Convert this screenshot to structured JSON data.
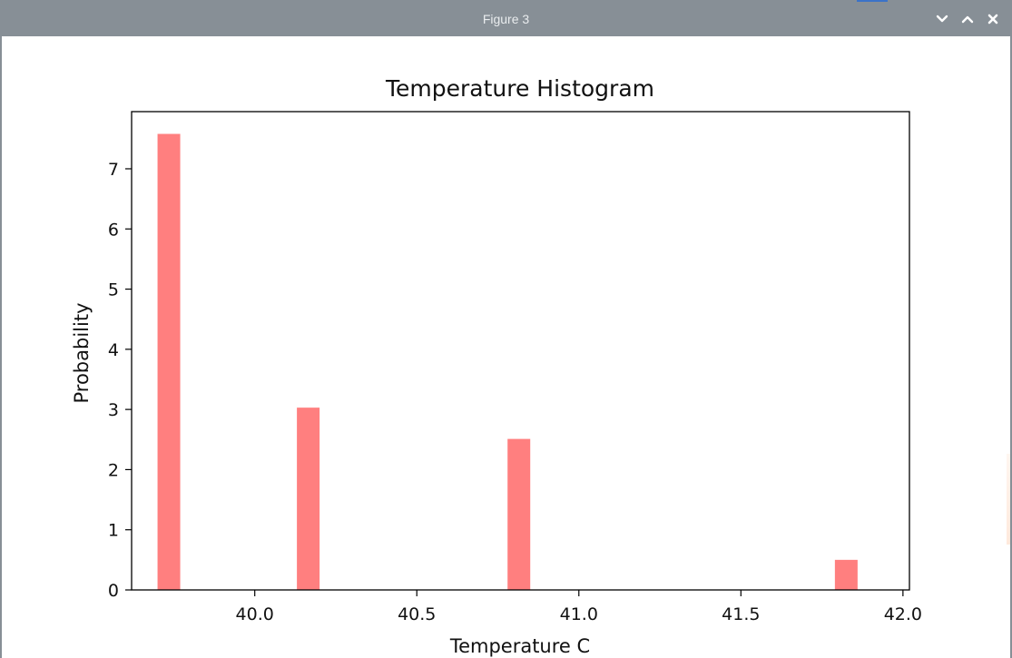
{
  "window": {
    "title": "Figure 3",
    "controls": [
      {
        "name": "minimize",
        "icon": "chevron-down-icon"
      },
      {
        "name": "maximize",
        "icon": "chevron-up-icon"
      },
      {
        "name": "close",
        "icon": "close-icon"
      }
    ],
    "titlebar_color": "#878f96"
  },
  "chart_data": {
    "type": "bar",
    "title": "Temperature Histogram",
    "xlabel": "Temperature C",
    "ylabel": "Probability",
    "xlim": [
      39.62,
      42.02
    ],
    "ylim": [
      0,
      7.95
    ],
    "bin_width": 0.07,
    "x_ticks": [
      40.0,
      40.5,
      41.0,
      41.5,
      42.0
    ],
    "x_tick_labels": [
      "40.0",
      "40.5",
      "41.0",
      "41.5",
      "42.0"
    ],
    "y_ticks": [
      0,
      1,
      2,
      3,
      4,
      5,
      6,
      7
    ],
    "y_tick_labels": [
      "0",
      "1",
      "2",
      "3",
      "4",
      "5",
      "6",
      "7"
    ],
    "bars": [
      {
        "x": 39.7,
        "value": 7.58
      },
      {
        "x": 40.13,
        "value": 3.03
      },
      {
        "x": 40.78,
        "value": 2.51
      },
      {
        "x": 41.79,
        "value": 0.5
      }
    ],
    "bar_color": "#ff7f7f",
    "grid": false
  }
}
